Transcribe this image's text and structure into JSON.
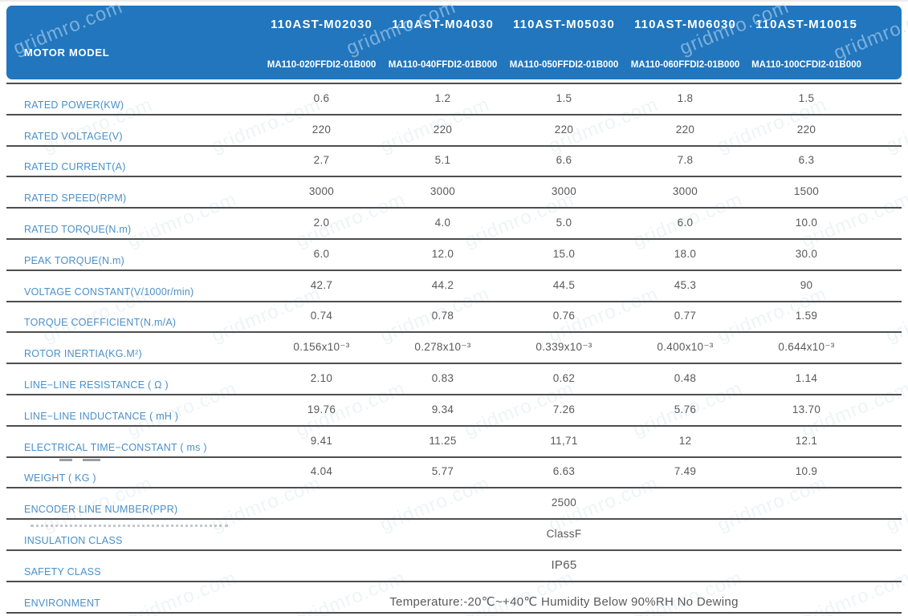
{
  "watermark": {
    "text": "gridmro.com"
  },
  "colors": {
    "header_bg": "#2176BD",
    "header_text": "#FFFFFF",
    "label_text": "#4A90C9",
    "value_text": "#595959",
    "divider": "#4E4E50"
  },
  "header": {
    "label": "MOTOR MODEL",
    "columns": [
      {
        "model": "110AST-M02030",
        "part": "MA110-020FFDI2-01B000"
      },
      {
        "model": "110AST-M04030",
        "part": "MA110-040FFDI2-01B000"
      },
      {
        "model": "110AST-M05030",
        "part": "MA110-050FFDI2-01B000"
      },
      {
        "model": "110AST-M06030",
        "part": "MA110-060FFDI2-01B000"
      },
      {
        "model": "110AST-M10015",
        "part": "MA110-100CFDI2-01B000"
      }
    ]
  },
  "table": {
    "rows": [
      {
        "label": "RATED POWER(KW)",
        "values": [
          "0.6",
          "1.2",
          "1.5",
          "1.8",
          "1.5"
        ]
      },
      {
        "label": "RATED VOLTAGE(V)",
        "values": [
          "220",
          "220",
          "220",
          "220",
          "220"
        ]
      },
      {
        "label": "RATED CURRENT(A)",
        "values": [
          "2.7",
          "5.1",
          "6.6",
          "7.8",
          "6.3"
        ]
      },
      {
        "label": "RATED SPEED(RPM)",
        "values": [
          "3000",
          "3000",
          "3000",
          "3000",
          "1500"
        ]
      },
      {
        "label": "RATED TORQUE(N.m)",
        "values": [
          "2.0",
          "4.0",
          "5.0",
          "6.0",
          "10.0"
        ]
      },
      {
        "label": "PEAK TORQUE(N.m)",
        "values": [
          "6.0",
          "12.0",
          "15.0",
          "18.0",
          "30.0"
        ]
      },
      {
        "label": "VOLTAGE CONSTANT(V/1000r/min)",
        "values": [
          "42.7",
          "44.2",
          "44.5",
          "45.3",
          "90"
        ]
      },
      {
        "label": "TORQUE COEFFICIENT(N.m/A)",
        "values": [
          "0.74",
          "0.78",
          "0.76",
          "0.77",
          "1.59"
        ]
      },
      {
        "label": "ROTOR INERTIA(KG.M²)",
        "values": [
          "0.156x10⁻³",
          "0.278x10⁻³",
          "0.339x10⁻³",
          "0.400x10⁻³",
          "0.644x10⁻³"
        ]
      },
      {
        "label": "LINE−LINE RESISTANCE ( Ω )",
        "values": [
          "2.10",
          "0.83",
          "0.62",
          "0.48",
          "1.14"
        ]
      },
      {
        "label": "LINE−LINE INDUCTANCE ( mH )",
        "values": [
          "19.76",
          "9.34",
          "7.26",
          "5.76",
          "13.70"
        ]
      },
      {
        "label": "ELECTRICAL TIME−CONSTANT ( ms )",
        "values": [
          "9.41",
          "11.25",
          "11,71",
          "12",
          "12.1"
        ]
      },
      {
        "label": "WEIGHT ( KG )",
        "values": [
          "4.04",
          "5.77",
          "6.63",
          "7.49",
          "10.9"
        ]
      },
      {
        "label": "ENCODER LINE NUMBER(PPR)",
        "span": "2500"
      },
      {
        "label": "INSULATION CLASS",
        "span": "ClassF"
      },
      {
        "label": "SAFETY CLASS",
        "span": "IP65"
      },
      {
        "label": "ENVIRONMENT",
        "span": "Temperature:-20℃~+40℃  Humidity Below 90%RH No Dewing"
      }
    ]
  }
}
